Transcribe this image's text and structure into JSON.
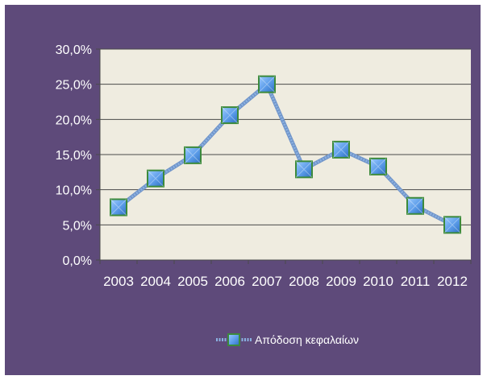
{
  "chart_data": {
    "type": "line",
    "categories": [
      "2003",
      "2004",
      "2005",
      "2006",
      "2007",
      "2008",
      "2009",
      "2010",
      "2011",
      "2012"
    ],
    "series": [
      {
        "name": "Απόδοση κεφαλαίων",
        "values": [
          7.5,
          11.6,
          14.9,
          20.6,
          25.0,
          12.9,
          15.7,
          13.3,
          7.7,
          5.0
        ]
      }
    ],
    "y_ticks": [
      "0,0%",
      "5,0%",
      "10,0%",
      "15,0%",
      "20,0%",
      "25,0%",
      "30,0%"
    ],
    "ylim": [
      0,
      30
    ],
    "y_unit": "%",
    "grid": true,
    "legend_position": "bottom",
    "title": "",
    "xlabel": "",
    "ylabel": "",
    "colors": {
      "background": "#5e4a7a",
      "plot_area": "#efece0",
      "gridline": "#4a4a4a",
      "line": "#8ab0e0",
      "marker_fill": "#5a9be8",
      "marker_border": "#3c8a3c",
      "text": "#ffffff"
    }
  }
}
